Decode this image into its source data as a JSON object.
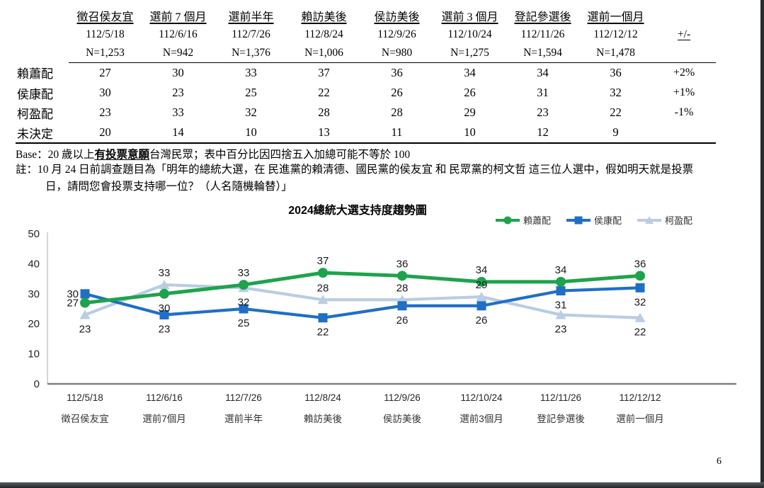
{
  "table": {
    "columns": [
      {
        "label": "徵召侯友宜",
        "date": "112/5/18",
        "n": "N=1,253"
      },
      {
        "label": "選前 7 個月",
        "date": "112/6/16",
        "n": "N=942"
      },
      {
        "label": "選前半年",
        "date": "112/7/26",
        "n": "N=1,376"
      },
      {
        "label": "賴訪美後",
        "date": "112/8/24",
        "n": "N=1,006"
      },
      {
        "label": "侯訪美後",
        "date": "112/9/26",
        "n": "N=980"
      },
      {
        "label": "選前 3 個月",
        "date": "112/10/24",
        "n": "N=1,275"
      },
      {
        "label": "登記參選後",
        "date": "112/11/26",
        "n": "N=1,594"
      },
      {
        "label": "選前一個月",
        "date": "112/12/12",
        "n": "N=1,478"
      }
    ],
    "change_header": "+/-",
    "rows": [
      {
        "label": "賴蕭配",
        "values": [
          27,
          30,
          33,
          37,
          36,
          34,
          34,
          36
        ],
        "change": "+2%"
      },
      {
        "label": "侯康配",
        "values": [
          30,
          23,
          25,
          22,
          26,
          26,
          31,
          32
        ],
        "change": "+1%"
      },
      {
        "label": "柯盈配",
        "values": [
          23,
          33,
          32,
          28,
          28,
          29,
          23,
          22
        ],
        "change": "-1%"
      },
      {
        "label": "未決定",
        "values": [
          20,
          14,
          10,
          13,
          11,
          10,
          12,
          9
        ],
        "change": ""
      }
    ]
  },
  "notes": {
    "base_prefix": "Base：20 歲以上",
    "base_emph": "有投票意願",
    "base_suffix": "台灣民眾；表中百分比因四捨五入加總可能不等於 100",
    "survey_line1": "註：10 月 24 日前調查題目為「明年的總統大選，在 民進黨的賴清德、國民黨的侯友宜 和 民眾黨的柯文哲 這三位人選中，假如明天就是投票",
    "survey_line2": "日，請問您會投票支持哪一位？（人名隨機輪替）」"
  },
  "chart_data": {
    "type": "line",
    "title": "2024總統大選支持度趨勢圖",
    "x": [
      "112/5/18",
      "112/6/16",
      "112/7/26",
      "112/8/24",
      "112/9/26",
      "112/10/24",
      "112/11/26",
      "112/12/12"
    ],
    "x_sublabels": [
      "徵召侯友宜",
      "選前7個月",
      "選前半年",
      "賴訪美後",
      "侯訪美後",
      "選前3個月",
      "登記參選後",
      "選前一個月"
    ],
    "series": [
      {
        "name": "賴蕭配",
        "color": "#1EA34D",
        "marker": "circle",
        "values": [
          27,
          30,
          33,
          37,
          36,
          34,
          34,
          36
        ]
      },
      {
        "name": "侯康配",
        "color": "#1F6FC5",
        "marker": "square",
        "values": [
          30,
          23,
          25,
          22,
          26,
          26,
          31,
          32
        ]
      },
      {
        "name": "柯盈配",
        "color": "#B9CDE4",
        "marker": "triangle",
        "values": [
          23,
          33,
          32,
          28,
          28,
          29,
          23,
          22
        ]
      }
    ],
    "ylim": [
      0,
      50
    ],
    "yticks": [
      0,
      10,
      20,
      30,
      40,
      50
    ],
    "grid": false,
    "legend_position": "top-right",
    "axis_color": "#7F7F7F"
  },
  "page_number": "6"
}
